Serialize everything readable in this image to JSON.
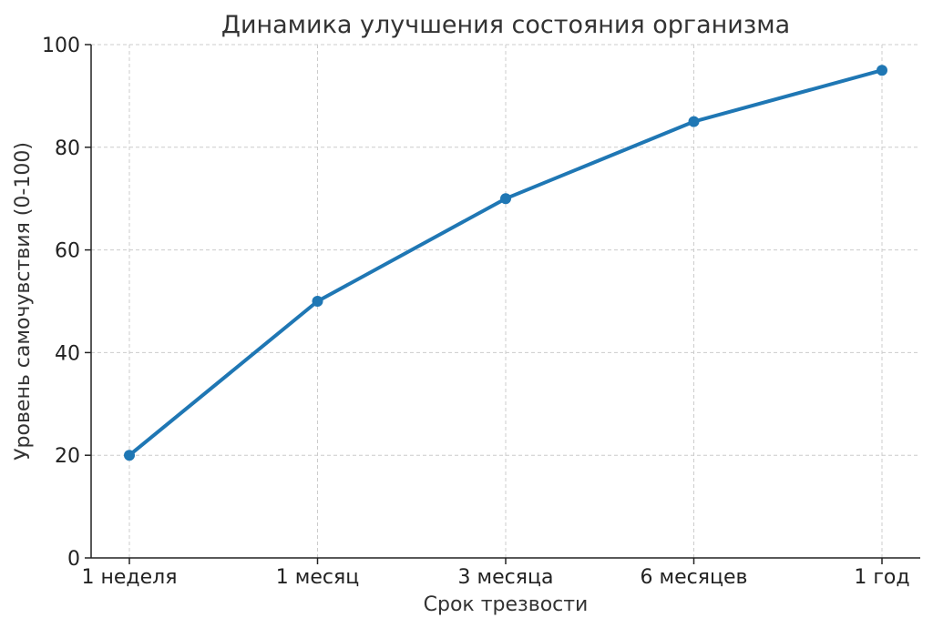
{
  "chart_data": {
    "type": "line",
    "title": "Динамика улучшения состояния организма",
    "xlabel": "Срок трезвости",
    "ylabel": "Уровень самочувствия (0-100)",
    "categories": [
      "1 неделя",
      "1 месяц",
      "3 месяца",
      "6 месяцев",
      "1 год"
    ],
    "series": [
      {
        "values": [
          20,
          50,
          70,
          85,
          95
        ]
      }
    ],
    "ylim": [
      0,
      100
    ],
    "yticks": [
      0,
      20,
      40,
      60,
      80,
      100
    ],
    "grid": true,
    "colors": {
      "line": "#1f77b4"
    }
  }
}
